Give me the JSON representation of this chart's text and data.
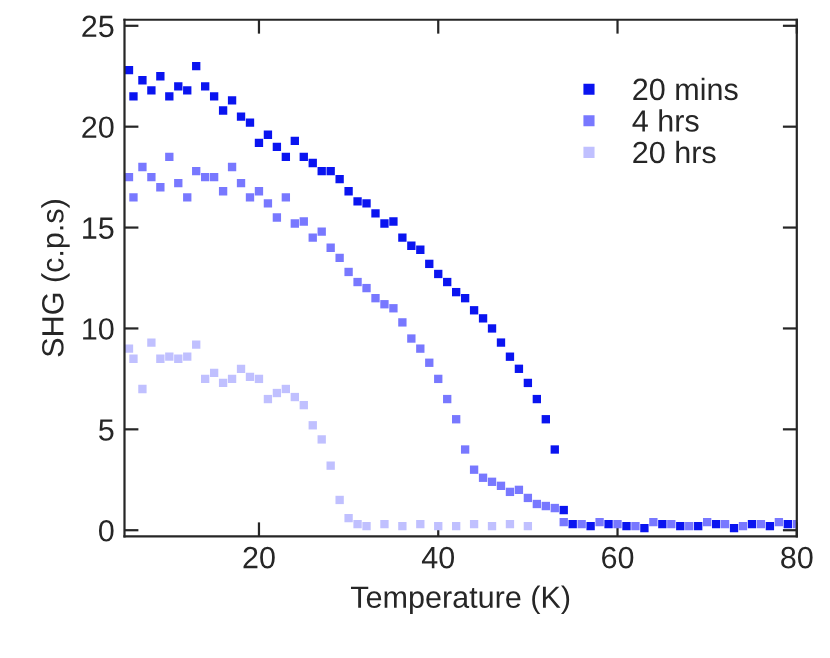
{
  "chart_data": {
    "type": "scatter",
    "xlabel": "Temperature (K)",
    "ylabel": "SHG (c.p.s)",
    "xlim": [
      5,
      80
    ],
    "ylim": [
      -0.3,
      25.3
    ],
    "xticks": [
      20,
      40,
      60,
      80
    ],
    "yticks": [
      0,
      5,
      10,
      15,
      20,
      25
    ],
    "marker": "square",
    "grid": false,
    "legend": "top right",
    "series": [
      {
        "name": "20 mins",
        "color": "#0a14f0",
        "x": [
          5.5,
          6,
          7,
          8,
          9,
          10,
          11,
          12,
          13,
          14,
          15,
          16,
          17,
          18,
          19,
          20,
          21,
          22,
          23,
          24,
          25,
          26,
          27,
          28,
          29,
          30,
          31,
          32,
          33,
          34,
          35,
          36,
          37,
          38,
          39,
          40,
          41,
          42,
          43,
          44,
          45,
          46,
          47,
          48,
          49,
          50,
          51,
          52,
          53,
          54,
          55,
          57,
          59,
          61,
          63,
          65,
          67,
          69,
          71,
          73,
          75,
          77,
          79
        ],
        "values": [
          22.8,
          21.5,
          22.3,
          21.8,
          22.5,
          21.5,
          22,
          21.8,
          23,
          22,
          21.5,
          20.8,
          21.3,
          20.5,
          20.2,
          19.2,
          19.6,
          19,
          18.5,
          19.3,
          18.5,
          18.2,
          17.8,
          17.8,
          17.4,
          16.8,
          16.3,
          16.2,
          15.7,
          15.2,
          15.3,
          14.5,
          14.1,
          13.9,
          13.2,
          12.7,
          12.3,
          11.8,
          11.5,
          10.9,
          10.5,
          10,
          9.3,
          8.6,
          8,
          7.3,
          6.5,
          5.5,
          4,
          1,
          0.3,
          0.2,
          0.3,
          0.2,
          0.1,
          0.3,
          0.2,
          0.2,
          0.3,
          0.1,
          0.3,
          0.2,
          0.3
        ]
      },
      {
        "name": "4 hrs",
        "color": "#7878ff",
        "x": [
          5.5,
          6,
          7,
          8,
          9,
          10,
          11,
          12,
          13,
          14,
          15,
          16,
          17,
          18,
          19,
          20,
          21,
          22,
          23,
          24,
          25,
          26,
          27,
          28,
          29,
          30,
          31,
          32,
          33,
          34,
          35,
          36,
          37,
          38,
          39,
          40,
          41,
          42,
          43,
          44,
          45,
          46,
          47,
          48,
          49,
          50,
          51,
          52,
          53,
          54,
          56,
          58,
          60,
          62,
          64,
          66,
          68,
          70,
          72,
          74,
          76,
          78,
          80
        ],
        "values": [
          17.5,
          16.5,
          18,
          17.5,
          17,
          18.5,
          17.2,
          16.5,
          17.8,
          17.5,
          17.5,
          16.8,
          18,
          17.2,
          16.5,
          16.8,
          16.2,
          15.5,
          16.5,
          15.2,
          15.3,
          14.5,
          14.8,
          14,
          13.5,
          12.8,
          12.3,
          12,
          11.5,
          11.2,
          11,
          10.3,
          9.5,
          9,
          8.3,
          7.5,
          6.5,
          5.5,
          4,
          3,
          2.6,
          2.4,
          2.2,
          1.9,
          2,
          1.6,
          1.3,
          1.2,
          1.1,
          0.4,
          0.3,
          0.4,
          0.3,
          0.2,
          0.4,
          0.3,
          0.2,
          0.4,
          0.3,
          0.2,
          0.3,
          0.4,
          0.3
        ]
      },
      {
        "name": "20 hrs",
        "color": "#c0c0ff",
        "x": [
          5.5,
          6,
          7,
          8,
          9,
          10,
          11,
          12,
          13,
          14,
          15,
          16,
          17,
          18,
          19,
          20,
          21,
          22,
          23,
          24,
          25,
          26,
          27,
          28,
          29,
          30,
          31,
          32,
          34,
          36,
          38,
          40,
          42,
          44,
          46,
          48,
          50
        ],
        "values": [
          9,
          8.5,
          7,
          9.3,
          8.5,
          8.6,
          8.5,
          8.6,
          9.2,
          7.5,
          7.8,
          7.3,
          7.5,
          8,
          7.6,
          7.5,
          6.5,
          6.8,
          7,
          6.6,
          6.2,
          5.2,
          4.5,
          3.2,
          1.5,
          0.6,
          0.3,
          0.2,
          0.3,
          0.2,
          0.3,
          0.2,
          0.2,
          0.3,
          0.2,
          0.3,
          0.2
        ]
      }
    ]
  }
}
